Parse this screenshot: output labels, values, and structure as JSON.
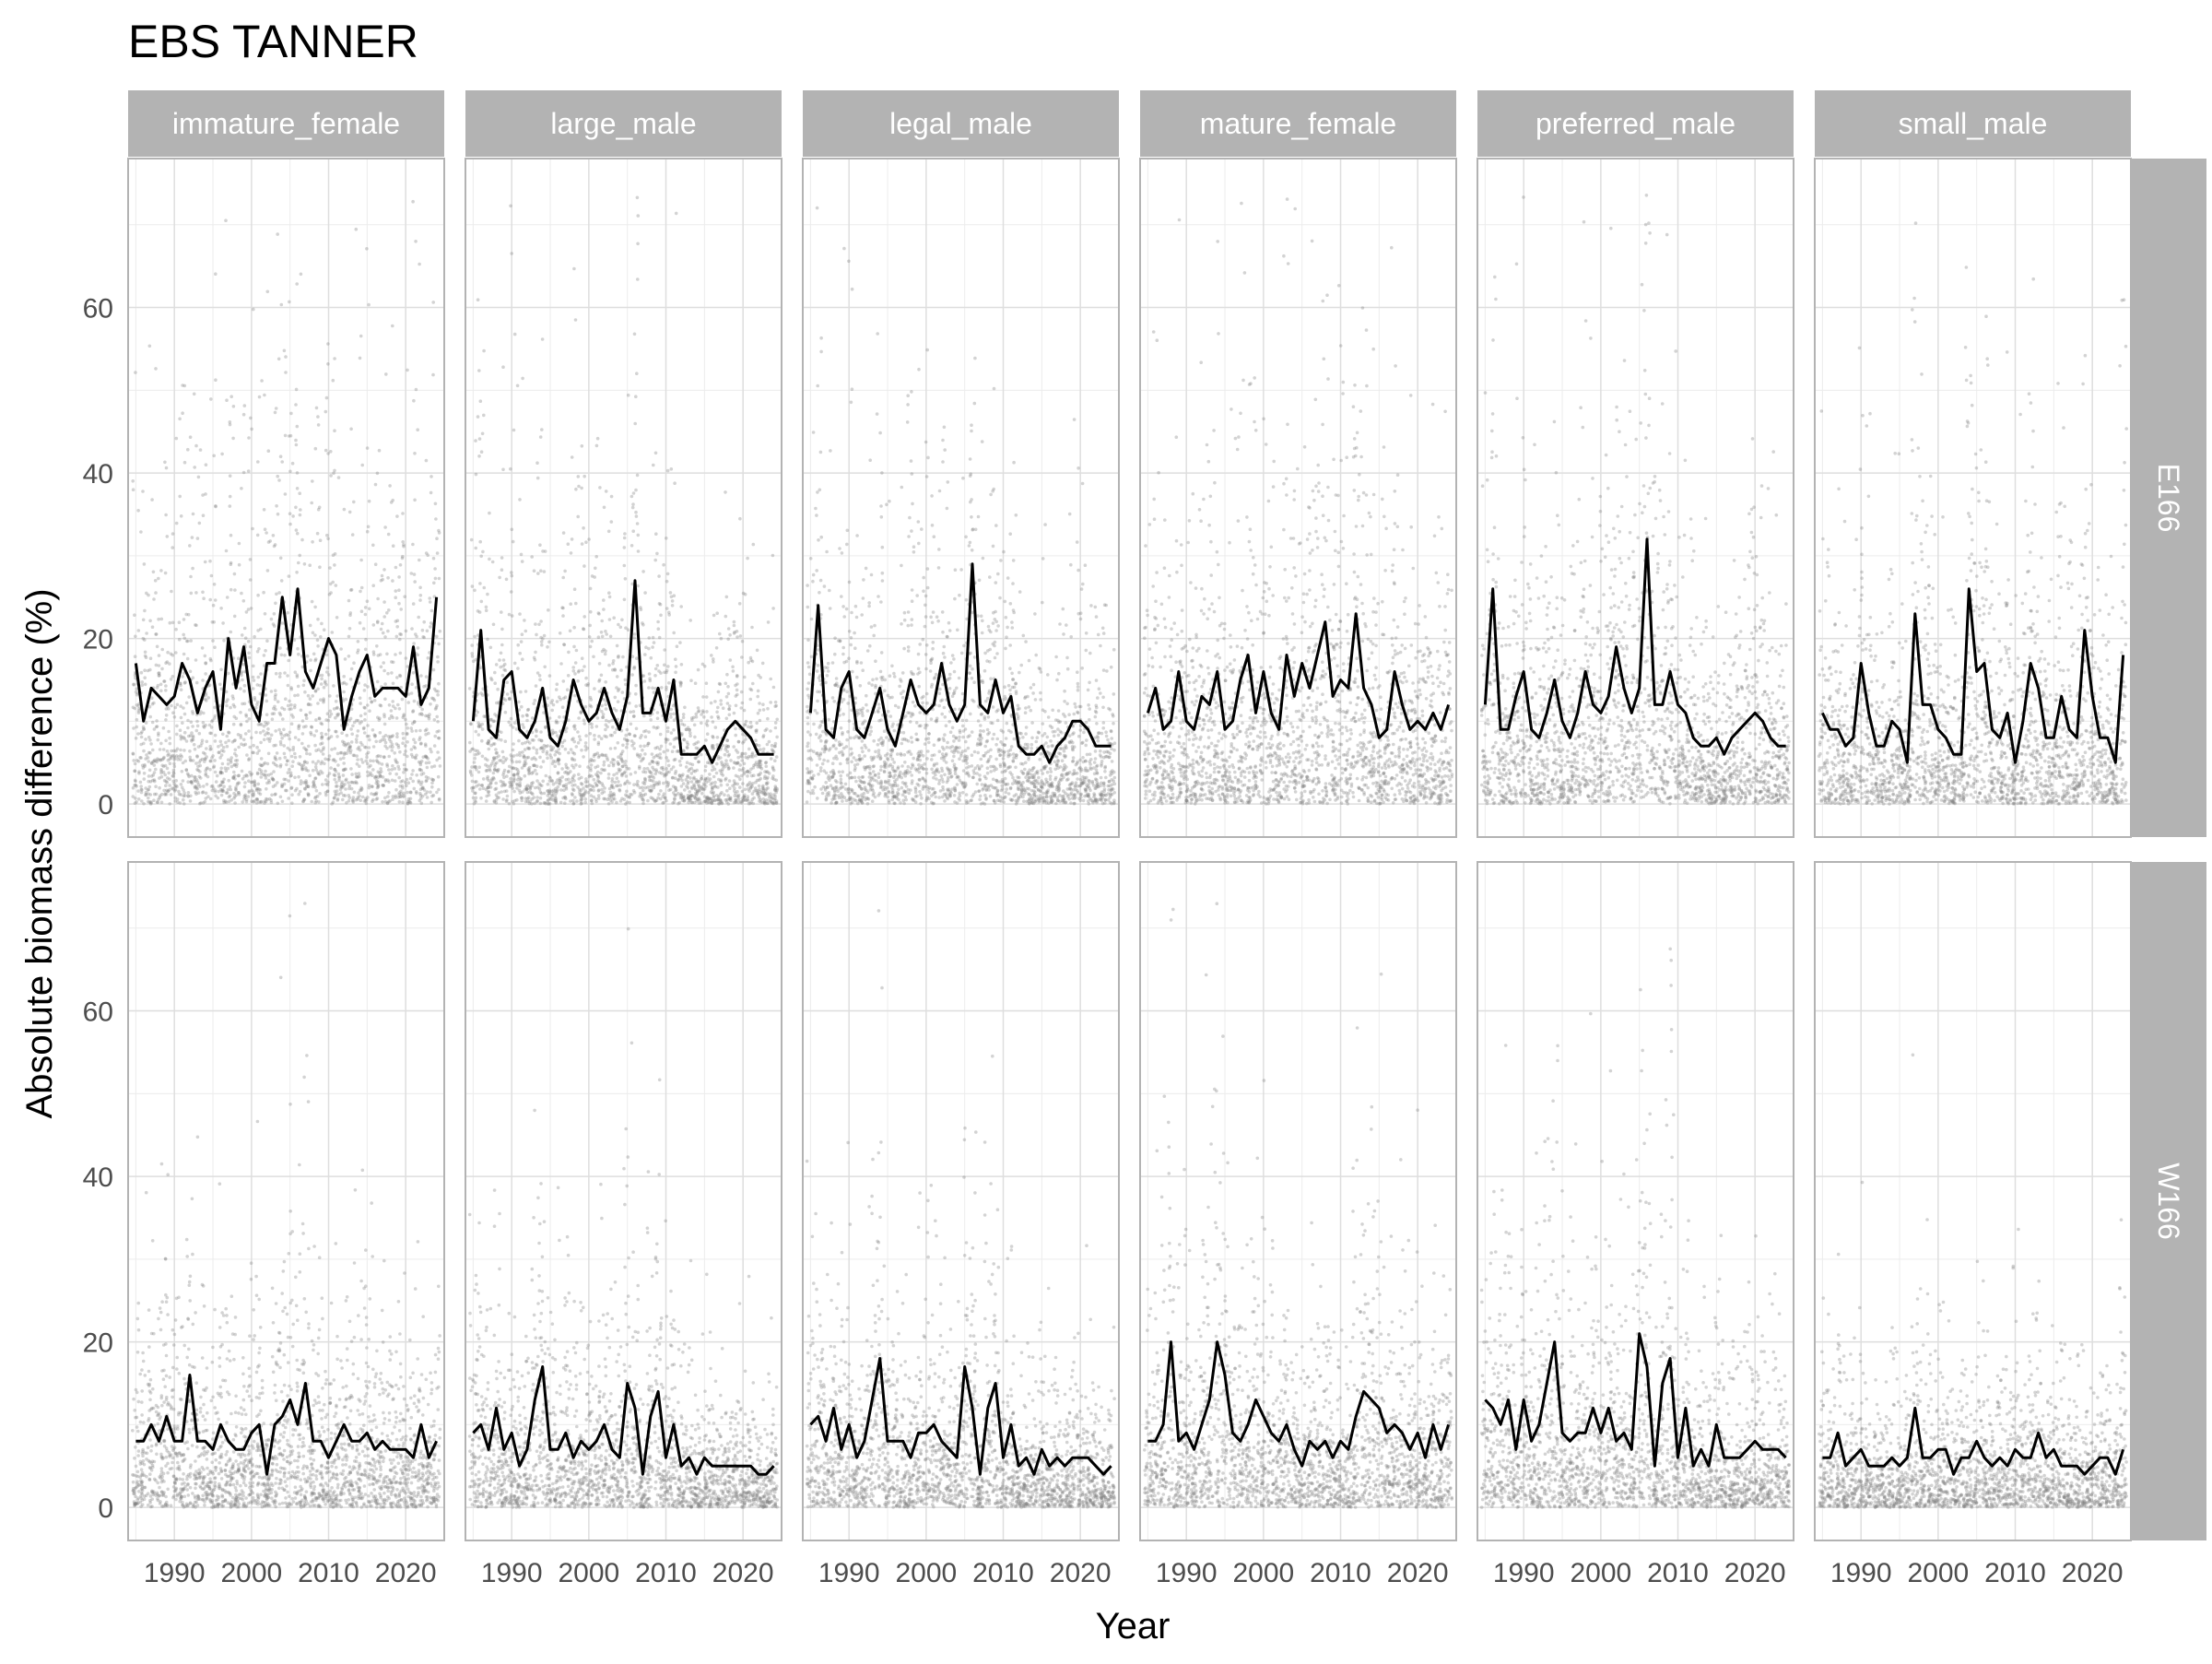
{
  "chart_data": {
    "type": "scatter",
    "title": "EBS TANNER",
    "xlabel": "Year",
    "ylabel": "Absolute biomass difference (%)",
    "facet_columns": [
      "immature_female",
      "large_male",
      "legal_male",
      "mature_female",
      "preferred_male",
      "small_male"
    ],
    "facet_rows": [
      "E166",
      "W166"
    ],
    "x_ticks": [
      1990,
      2000,
      2010,
      2020
    ],
    "y_ticks": [
      0,
      20,
      40,
      60
    ],
    "xlim": [
      1984,
      2025
    ],
    "ylim": [
      -4,
      78
    ],
    "grid": true,
    "series": [
      {
        "column": "immature_female",
        "row": "E166",
        "years": [
          1985,
          1986,
          1987,
          1988,
          1989,
          1990,
          1991,
          1992,
          1993,
          1994,
          1995,
          1996,
          1997,
          1998,
          1999,
          2000,
          2001,
          2002,
          2003,
          2004,
          2005,
          2006,
          2007,
          2008,
          2009,
          2010,
          2011,
          2012,
          2013,
          2014,
          2015,
          2016,
          2017,
          2018,
          2019,
          2020,
          2021,
          2022,
          2023,
          2024
        ],
        "values": [
          17,
          10,
          14,
          13,
          12,
          13,
          17,
          15,
          11,
          14,
          16,
          9,
          20,
          14,
          19,
          12,
          10,
          17,
          17,
          25,
          18,
          26,
          16,
          14,
          17,
          20,
          18,
          9,
          13,
          16,
          18,
          13,
          14,
          14,
          14,
          13,
          19,
          12,
          14,
          25
        ]
      },
      {
        "column": "large_male",
        "row": "E166",
        "years": [
          1985,
          1986,
          1987,
          1988,
          1989,
          1990,
          1991,
          1992,
          1993,
          1994,
          1995,
          1996,
          1997,
          1998,
          1999,
          2000,
          2001,
          2002,
          2003,
          2004,
          2005,
          2006,
          2007,
          2008,
          2009,
          2010,
          2011,
          2012,
          2013,
          2014,
          2015,
          2016,
          2017,
          2018,
          2019,
          2020,
          2021,
          2022,
          2023,
          2024
        ],
        "values": [
          10,
          21,
          9,
          8,
          15,
          16,
          9,
          8,
          10,
          14,
          8,
          7,
          10,
          15,
          12,
          10,
          11,
          14,
          11,
          9,
          13,
          27,
          11,
          11,
          14,
          10,
          15,
          6,
          6,
          6,
          7,
          5,
          7,
          9,
          10,
          9,
          8,
          6,
          6,
          6
        ]
      },
      {
        "column": "legal_male",
        "row": "E166",
        "years": [
          1985,
          1986,
          1987,
          1988,
          1989,
          1990,
          1991,
          1992,
          1993,
          1994,
          1995,
          1996,
          1997,
          1998,
          1999,
          2000,
          2001,
          2002,
          2003,
          2004,
          2005,
          2006,
          2007,
          2008,
          2009,
          2010,
          2011,
          2012,
          2013,
          2014,
          2015,
          2016,
          2017,
          2018,
          2019,
          2020,
          2021,
          2022,
          2023,
          2024
        ],
        "values": [
          11,
          24,
          9,
          8,
          14,
          16,
          9,
          8,
          11,
          14,
          9,
          7,
          11,
          15,
          12,
          11,
          12,
          17,
          12,
          10,
          12,
          29,
          12,
          11,
          15,
          11,
          13,
          7,
          6,
          6,
          7,
          5,
          7,
          8,
          10,
          10,
          9,
          7,
          7,
          7
        ]
      },
      {
        "column": "mature_female",
        "row": "E166",
        "years": [
          1985,
          1986,
          1987,
          1988,
          1989,
          1990,
          1991,
          1992,
          1993,
          1994,
          1995,
          1996,
          1997,
          1998,
          1999,
          2000,
          2001,
          2002,
          2003,
          2004,
          2005,
          2006,
          2007,
          2008,
          2009,
          2010,
          2011,
          2012,
          2013,
          2014,
          2015,
          2016,
          2017,
          2018,
          2019,
          2020,
          2021,
          2022,
          2023,
          2024
        ],
        "values": [
          11,
          14,
          9,
          10,
          16,
          10,
          9,
          13,
          12,
          16,
          9,
          10,
          15,
          18,
          11,
          16,
          11,
          9,
          18,
          13,
          17,
          14,
          18,
          22,
          13,
          15,
          14,
          23,
          14,
          12,
          8,
          9,
          16,
          12,
          9,
          10,
          9,
          11,
          9,
          12
        ]
      },
      {
        "column": "preferred_male",
        "row": "E166",
        "years": [
          1985,
          1986,
          1987,
          1988,
          1989,
          1990,
          1991,
          1992,
          1993,
          1994,
          1995,
          1996,
          1997,
          1998,
          1999,
          2000,
          2001,
          2002,
          2003,
          2004,
          2005,
          2006,
          2007,
          2008,
          2009,
          2010,
          2011,
          2012,
          2013,
          2014,
          2015,
          2016,
          2017,
          2018,
          2019,
          2020,
          2021,
          2022,
          2023,
          2024
        ],
        "values": [
          12,
          26,
          9,
          9,
          13,
          16,
          9,
          8,
          11,
          15,
          10,
          8,
          11,
          16,
          12,
          11,
          13,
          19,
          14,
          11,
          14,
          32,
          12,
          12,
          16,
          12,
          11,
          8,
          7,
          7,
          8,
          6,
          8,
          9,
          10,
          11,
          10,
          8,
          7,
          7
        ]
      },
      {
        "column": "small_male",
        "row": "E166",
        "years": [
          1985,
          1986,
          1987,
          1988,
          1989,
          1990,
          1991,
          1992,
          1993,
          1994,
          1995,
          1996,
          1997,
          1998,
          1999,
          2000,
          2001,
          2002,
          2003,
          2004,
          2005,
          2006,
          2007,
          2008,
          2009,
          2010,
          2011,
          2012,
          2013,
          2014,
          2015,
          2016,
          2017,
          2018,
          2019,
          2020,
          2021,
          2022,
          2023,
          2024
        ],
        "values": [
          11,
          9,
          9,
          7,
          8,
          17,
          11,
          7,
          7,
          10,
          9,
          5,
          23,
          12,
          12,
          9,
          8,
          6,
          6,
          26,
          16,
          17,
          9,
          8,
          11,
          5,
          10,
          17,
          14,
          8,
          8,
          13,
          9,
          8,
          21,
          13,
          8,
          8,
          5,
          18
        ]
      },
      {
        "column": "immature_female",
        "row": "W166",
        "years": [
          1985,
          1986,
          1987,
          1988,
          1989,
          1990,
          1991,
          1992,
          1993,
          1994,
          1995,
          1996,
          1997,
          1998,
          1999,
          2000,
          2001,
          2002,
          2003,
          2004,
          2005,
          2006,
          2007,
          2008,
          2009,
          2010,
          2011,
          2012,
          2013,
          2014,
          2015,
          2016,
          2017,
          2018,
          2019,
          2020,
          2021,
          2022,
          2023,
          2024
        ],
        "values": [
          8,
          8,
          10,
          8,
          11,
          8,
          8,
          16,
          8,
          8,
          7,
          10,
          8,
          7,
          7,
          9,
          10,
          4,
          10,
          11,
          13,
          10,
          15,
          8,
          8,
          6,
          8,
          10,
          8,
          8,
          9,
          7,
          8,
          7,
          7,
          7,
          6,
          10,
          6,
          8
        ]
      },
      {
        "column": "large_male",
        "row": "W166",
        "years": [
          1985,
          1986,
          1987,
          1988,
          1989,
          1990,
          1991,
          1992,
          1993,
          1994,
          1995,
          1996,
          1997,
          1998,
          1999,
          2000,
          2001,
          2002,
          2003,
          2004,
          2005,
          2006,
          2007,
          2008,
          2009,
          2010,
          2011,
          2012,
          2013,
          2014,
          2015,
          2016,
          2017,
          2018,
          2019,
          2020,
          2021,
          2022,
          2023,
          2024
        ],
        "values": [
          9,
          10,
          7,
          12,
          7,
          9,
          5,
          7,
          13,
          17,
          7,
          7,
          9,
          6,
          8,
          7,
          8,
          10,
          7,
          6,
          15,
          12,
          4,
          11,
          14,
          6,
          10,
          5,
          6,
          4,
          6,
          5,
          5,
          5,
          5,
          5,
          5,
          4,
          4,
          5
        ]
      },
      {
        "column": "legal_male",
        "row": "W166",
        "years": [
          1985,
          1986,
          1987,
          1988,
          1989,
          1990,
          1991,
          1992,
          1993,
          1994,
          1995,
          1996,
          1997,
          1998,
          1999,
          2000,
          2001,
          2002,
          2003,
          2004,
          2005,
          2006,
          2007,
          2008,
          2009,
          2010,
          2011,
          2012,
          2013,
          2014,
          2015,
          2016,
          2017,
          2018,
          2019,
          2020,
          2021,
          2022,
          2023,
          2024
        ],
        "values": [
          10,
          11,
          8,
          12,
          7,
          10,
          6,
          8,
          13,
          18,
          8,
          8,
          8,
          6,
          9,
          9,
          10,
          8,
          7,
          6,
          17,
          12,
          4,
          12,
          15,
          6,
          10,
          5,
          6,
          4,
          7,
          5,
          6,
          5,
          6,
          6,
          6,
          5,
          4,
          5
        ]
      },
      {
        "column": "mature_female",
        "row": "W166",
        "years": [
          1985,
          1986,
          1987,
          1988,
          1989,
          1990,
          1991,
          1992,
          1993,
          1994,
          1995,
          1996,
          1997,
          1998,
          1999,
          2000,
          2001,
          2002,
          2003,
          2004,
          2005,
          2006,
          2007,
          2008,
          2009,
          2010,
          2011,
          2012,
          2013,
          2014,
          2015,
          2016,
          2017,
          2018,
          2019,
          2020,
          2021,
          2022,
          2023,
          2024
        ],
        "values": [
          8,
          8,
          10,
          20,
          8,
          9,
          7,
          10,
          13,
          20,
          16,
          9,
          8,
          10,
          13,
          11,
          9,
          8,
          10,
          7,
          5,
          8,
          7,
          8,
          6,
          8,
          7,
          11,
          14,
          13,
          12,
          9,
          10,
          9,
          7,
          9,
          6,
          10,
          7,
          10
        ]
      },
      {
        "column": "preferred_male",
        "row": "W166",
        "years": [
          1985,
          1986,
          1987,
          1988,
          1989,
          1990,
          1991,
          1992,
          1993,
          1994,
          1995,
          1996,
          1997,
          1998,
          1999,
          2000,
          2001,
          2002,
          2003,
          2004,
          2005,
          2006,
          2007,
          2008,
          2009,
          2010,
          2011,
          2012,
          2013,
          2014,
          2015,
          2016,
          2017,
          2018,
          2019,
          2020,
          2021,
          2022,
          2023,
          2024
        ],
        "values": [
          13,
          12,
          10,
          13,
          7,
          13,
          8,
          10,
          15,
          20,
          9,
          8,
          9,
          9,
          12,
          9,
          12,
          8,
          9,
          7,
          21,
          17,
          5,
          15,
          18,
          6,
          12,
          5,
          7,
          5,
          10,
          6,
          6,
          6,
          7,
          8,
          7,
          7,
          7,
          6
        ]
      },
      {
        "column": "small_male",
        "row": "W166",
        "years": [
          1985,
          1986,
          1987,
          1988,
          1989,
          1990,
          1991,
          1992,
          1993,
          1994,
          1995,
          1996,
          1997,
          1998,
          1999,
          2000,
          2001,
          2002,
          2003,
          2004,
          2005,
          2006,
          2007,
          2008,
          2009,
          2010,
          2011,
          2012,
          2013,
          2014,
          2015,
          2016,
          2017,
          2018,
          2019,
          2020,
          2021,
          2022,
          2023,
          2024
        ],
        "values": [
          6,
          6,
          9,
          5,
          6,
          7,
          5,
          5,
          5,
          6,
          5,
          6,
          12,
          6,
          6,
          7,
          7,
          4,
          6,
          6,
          8,
          6,
          5,
          6,
          5,
          7,
          6,
          6,
          9,
          6,
          7,
          5,
          5,
          5,
          4,
          5,
          6,
          6,
          4,
          7
        ]
      }
    ],
    "colors": {
      "line": "#000000",
      "points": "#808080",
      "strip_background": "#b3b3b3",
      "strip_text": "#ffffff",
      "grid": "#dedede",
      "panel_border": "#b3b3b3"
    }
  }
}
